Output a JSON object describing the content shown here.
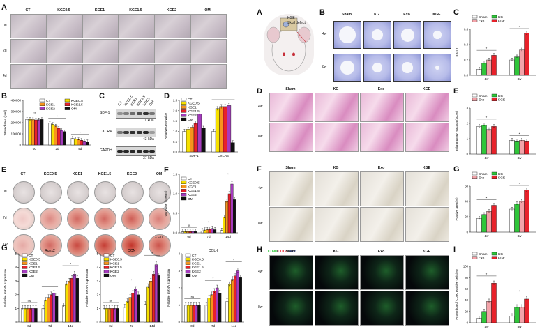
{
  "panels": {
    "A": "A",
    "B": "B",
    "C": "C",
    "D": "D",
    "E": "E",
    "F": "F",
    "G": "G",
    "A2": "A",
    "B2": "B",
    "C2": "C",
    "D2": "D",
    "E2": "E",
    "F2": "F",
    "G2": "G",
    "H2": "H",
    "I2": "I"
  },
  "left": {
    "groups": [
      "CT",
      "KGE0.5",
      "KGE1",
      "KGE1.5",
      "KGE2",
      "OM"
    ],
    "wound_rows": [
      "0d",
      "2d",
      "4d"
    ],
    "ars_rows": [
      "0d",
      "7d",
      "14d"
    ],
    "scale_bar": "1 cm",
    "blot": {
      "lanes": [
        "CT",
        "KGE0.5",
        "KGE1",
        "KGE1.5",
        "KGE2",
        "OM"
      ],
      "bands": [
        {
          "name": "SDF-1",
          "kda": "11 kDa"
        },
        {
          "name": "CXCR4",
          "kda": "43 kDa"
        },
        {
          "name": "GAPDH",
          "kda": "37 kDa"
        }
      ]
    },
    "legend": [
      "CT",
      "KGE0.5",
      "KGE1",
      "KGE1.5",
      "KGE2",
      "OM"
    ],
    "group_colors": [
      "#ffffff",
      "#f6e000",
      "#f7941d",
      "#e8212a",
      "#a53bbd",
      "#111111"
    ]
  },
  "right": {
    "groups": [
      "Sham",
      "KG",
      "Exo",
      "KGE"
    ],
    "rows": [
      "4w",
      "8w"
    ],
    "if_label": {
      "cd90": "CD90",
      "sep1": "/",
      "col1": "COL-I",
      "sep2": "/",
      "dapi": "DAPI"
    },
    "mouse_label": "KGE",
    "mouse_sub": "Skull defect",
    "legend": [
      "Sham",
      "KG",
      "Exo",
      "KGE"
    ],
    "group_colors": [
      "#ffffff",
      "#2fc63a",
      "#f3a3a9",
      "#e8212a"
    ]
  },
  "sig": {
    "star": "*",
    "ns": "ns",
    "dagger": "†"
  },
  "chart_data": [
    {
      "panel": "B",
      "type": "bar",
      "ylabel": "Wound area (μm²)",
      "categories": [
        "0d",
        "2d",
        "4d"
      ],
      "ylim": [
        0,
        400000
      ],
      "yticks": [
        "0",
        "100000",
        "200000",
        "300000",
        "400000"
      ],
      "series": [
        {
          "name": "CT",
          "values": [
            230000,
            195000,
            60000
          ]
        },
        {
          "name": "KGE0.5",
          "values": [
            230000,
            185000,
            55000
          ]
        },
        {
          "name": "KGE1",
          "values": [
            228000,
            170000,
            48000
          ]
        },
        {
          "name": "KGE1.5",
          "values": [
            225000,
            150000,
            42000
          ]
        },
        {
          "name": "KGE2",
          "values": [
            226000,
            135000,
            35000
          ]
        },
        {
          "name": "OM",
          "values": [
            229000,
            120000,
            30000
          ]
        }
      ]
    },
    {
      "panel": "D",
      "type": "bar",
      "ylabel": "Relative grey value",
      "categories": [
        "SDF-1",
        "CXCR4"
      ],
      "ylim": [
        0,
        2.5
      ],
      "yticks": [
        "0.0",
        "0.5",
        "1.0",
        "1.5",
        "2.0",
        "2.5"
      ],
      "series": [
        {
          "name": "CT",
          "values": [
            1.0,
            1.0
          ]
        },
        {
          "name": "KGE0.5",
          "values": [
            1.1,
            2.1
          ]
        },
        {
          "name": "KGE1",
          "values": [
            1.2,
            2.2
          ]
        },
        {
          "name": "KGE1.5",
          "values": [
            1.4,
            2.2
          ]
        },
        {
          "name": "KGE2",
          "values": [
            1.85,
            2.25
          ]
        },
        {
          "name": "OM",
          "values": [
            1.15,
            0.45
          ]
        }
      ]
    },
    {
      "panel": "F",
      "type": "bar",
      "ylabel": "OD value (620nm)",
      "categories": [
        "0d",
        "7d",
        "14d"
      ],
      "ylim": [
        0,
        1.5
      ],
      "yticks": [
        "0.0",
        "0.5",
        "1.0",
        "1.5"
      ],
      "series": [
        {
          "name": "CT",
          "values": [
            0.03,
            0.05,
            0.06
          ]
        },
        {
          "name": "KGE0.5",
          "values": [
            0.03,
            0.07,
            0.4
          ]
        },
        {
          "name": "KGE1",
          "values": [
            0.03,
            0.08,
            0.8
          ]
        },
        {
          "name": "KGE1.5",
          "values": [
            0.03,
            0.09,
            1.0
          ]
        },
        {
          "name": "KGE2",
          "values": [
            0.03,
            0.11,
            1.25
          ]
        },
        {
          "name": "OM",
          "values": [
            0.03,
            0.08,
            0.85
          ]
        }
      ]
    },
    {
      "panel": "G-Runx2",
      "type": "bar",
      "title": "Runx2",
      "ylabel": "Relative mRNA expression",
      "categories": [
        "0d",
        "7d",
        "14d"
      ],
      "ylim": [
        0,
        5
      ],
      "yticks": [
        "0",
        "1",
        "2",
        "3",
        "4",
        "5"
      ],
      "series": [
        {
          "name": "CT",
          "values": [
            1.0,
            1.0,
            1.2
          ]
        },
        {
          "name": "KGE0.5",
          "values": [
            1.0,
            1.6,
            2.8
          ]
        },
        {
          "name": "KGE1",
          "values": [
            1.0,
            1.8,
            3.0
          ]
        },
        {
          "name": "KGE1.5",
          "values": [
            1.0,
            2.0,
            3.2
          ]
        },
        {
          "name": "KGE2",
          "values": [
            1.0,
            2.1,
            3.5
          ]
        },
        {
          "name": "OM",
          "values": [
            1.0,
            1.9,
            3.2
          ]
        }
      ]
    },
    {
      "panel": "G-OCN",
      "type": "bar",
      "title": "OCN",
      "ylabel": "Relative mRNA expression",
      "categories": [
        "0d",
        "7d",
        "14d"
      ],
      "ylim": [
        0,
        5
      ],
      "yticks": [
        "0",
        "1",
        "2",
        "3",
        "4",
        "5"
      ],
      "series": [
        {
          "name": "CT",
          "values": [
            1.0,
            1.1,
            1.3
          ]
        },
        {
          "name": "KGE0.5",
          "values": [
            1.0,
            1.5,
            2.6
          ]
        },
        {
          "name": "KGE1",
          "values": [
            1.0,
            1.8,
            3.0
          ]
        },
        {
          "name": "KGE1.5",
          "values": [
            1.0,
            2.1,
            3.5
          ]
        },
        {
          "name": "KGE2",
          "values": [
            1.0,
            2.4,
            4.2
          ]
        },
        {
          "name": "OM",
          "values": [
            1.0,
            2.0,
            3.4
          ]
        }
      ]
    },
    {
      "panel": "G-COL-I",
      "type": "bar",
      "title": "COL-I",
      "ylabel": "Relative mRNA expression",
      "categories": [
        "0d",
        "7d",
        "14d"
      ],
      "ylim": [
        0,
        4
      ],
      "yticks": [
        "0",
        "1",
        "2",
        "3",
        "4"
      ],
      "series": [
        {
          "name": "CT",
          "values": [
            1.0,
            1.0,
            1.2
          ]
        },
        {
          "name": "KGE0.5",
          "values": [
            1.0,
            1.4,
            2.2
          ]
        },
        {
          "name": "KGE1",
          "values": [
            1.0,
            1.6,
            2.5
          ]
        },
        {
          "name": "KGE1.5",
          "values": [
            1.0,
            1.8,
            2.7
          ]
        },
        {
          "name": "KGE2",
          "values": [
            1.0,
            2.0,
            3.0
          ]
        },
        {
          "name": "OM",
          "values": [
            1.0,
            1.7,
            2.6
          ]
        }
      ]
    },
    {
      "panel": "C-right",
      "type": "bar",
      "ylabel": "BV/TV",
      "categories": [
        "4w",
        "8w"
      ],
      "ylim": [
        0,
        0.6
      ],
      "yticks": [
        "0.0",
        "0.2",
        "0.4",
        "0.6"
      ],
      "series": [
        {
          "name": "Sham",
          "values": [
            0.08,
            0.2
          ]
        },
        {
          "name": "KG",
          "values": [
            0.16,
            0.24
          ]
        },
        {
          "name": "Exo",
          "values": [
            0.2,
            0.33
          ]
        },
        {
          "name": "KGE",
          "values": [
            0.26,
            0.55
          ]
        }
      ]
    },
    {
      "panel": "E-right",
      "type": "bar",
      "ylabel": "Inflammatory reaction (score)",
      "categories": [
        "4w",
        "8w"
      ],
      "ylim": [
        0,
        3
      ],
      "yticks": [
        "0",
        "1",
        "2",
        "3"
      ],
      "series": [
        {
          "name": "Sham",
          "values": [
            1.8,
            0.9
          ]
        },
        {
          "name": "KG",
          "values": [
            1.9,
            0.85
          ]
        },
        {
          "name": "Exo",
          "values": [
            1.6,
            0.9
          ]
        },
        {
          "name": "KGE",
          "values": [
            1.8,
            0.85
          ]
        }
      ]
    },
    {
      "panel": "G-right",
      "type": "bar",
      "ylabel": "Positive area(%)",
      "categories": [
        "4w",
        "8w"
      ],
      "ylim": [
        0,
        60
      ],
      "yticks": [
        "0",
        "20",
        "40",
        "60"
      ],
      "series": [
        {
          "name": "Sham",
          "values": [
            18,
            30
          ]
        },
        {
          "name": "KG",
          "values": [
            23,
            37
          ]
        },
        {
          "name": "Exo",
          "values": [
            27,
            40
          ]
        },
        {
          "name": "KGE",
          "values": [
            35,
            55
          ]
        }
      ]
    },
    {
      "panel": "I-right",
      "type": "bar",
      "ylabel": "Proportion of CD90 positive cells(%)",
      "categories": [
        "4w",
        "8w"
      ],
      "ylim": [
        0,
        100
      ],
      "yticks": [
        "0",
        "20",
        "40",
        "60",
        "80",
        "100"
      ],
      "series": [
        {
          "name": "Sham",
          "values": [
            8,
            12
          ]
        },
        {
          "name": "KG",
          "values": [
            20,
            28
          ]
        },
        {
          "name": "Exo",
          "values": [
            38,
            28
          ]
        },
        {
          "name": "KGE",
          "values": [
            70,
            42
          ]
        }
      ]
    }
  ]
}
